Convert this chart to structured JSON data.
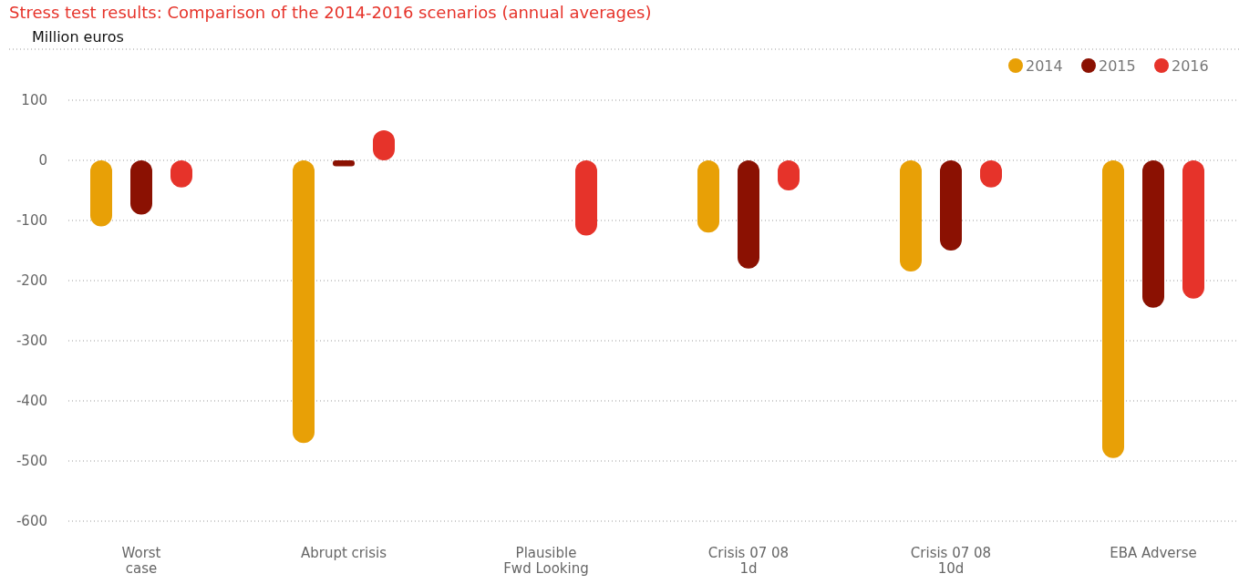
{
  "chart_data": {
    "type": "bar",
    "title": "Stress test results: Comparison of the 2014-2016 scenarios (annual averages)",
    "ylabel": "Million euros",
    "categories": [
      "Worst\ncase",
      "Abrupt crisis",
      "Plausible\nFwd Looking",
      "Crisis 07 08\n1d",
      "Crisis 07 08\n10d",
      "EBA Adverse"
    ],
    "series": [
      {
        "name": "2014",
        "color": "#e8a006",
        "values": [
          -110,
          -470,
          null,
          -120,
          -185,
          -495
        ]
      },
      {
        "name": "2015",
        "color": "#8b1102",
        "values": [
          -90,
          -10,
          null,
          -180,
          -150,
          -245
        ]
      },
      {
        "name": "2016",
        "color": "#e6332a",
        "values": [
          -45,
          50,
          -125,
          -50,
          -45,
          -230
        ]
      }
    ],
    "ylim": [
      -600,
      100
    ],
    "yticks": [
      -600,
      -500,
      -400,
      -300,
      -200,
      -100,
      0,
      100
    ],
    "grid": "y",
    "legend": "top right"
  }
}
